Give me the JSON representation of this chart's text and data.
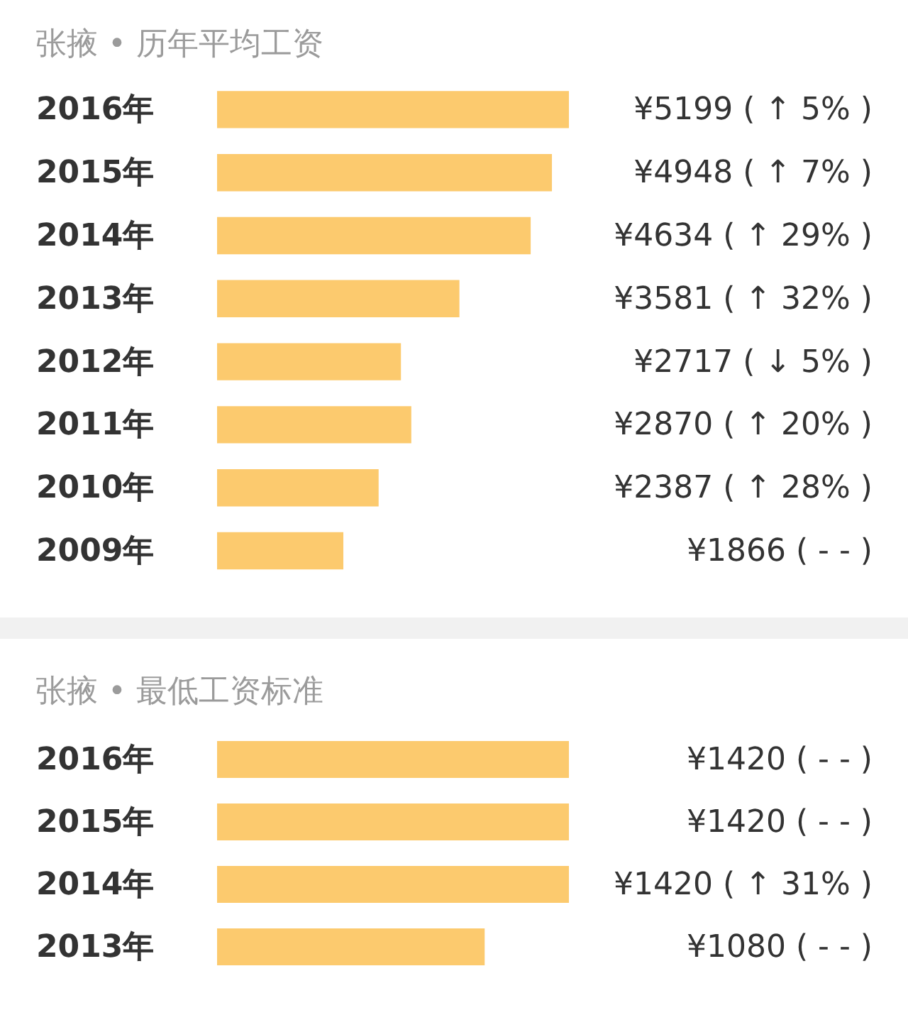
{
  "chart_data": [
    {
      "type": "bar",
      "orientation": "horizontal",
      "title": "张掖 • 历年平均工资",
      "categories": [
        "2016年",
        "2015年",
        "2014年",
        "2013年",
        "2012年",
        "2011年",
        "2010年",
        "2009年"
      ],
      "values": [
        5199,
        4948,
        4634,
        3581,
        2717,
        2870,
        2387,
        1866
      ],
      "color": "#fcca6e",
      "value_labels": [
        "¥5199 ( ↑ 5% )",
        "¥4948 ( ↑ 7% )",
        "¥4634 ( ↑ 29% )",
        "¥3581 ( ↑ 32% )",
        "¥2717 ( ↓ 5% )",
        "¥2870 ( ↑ 20% )",
        "¥2387 ( ↑ 28% )",
        "¥1866 ( - - )"
      ]
    },
    {
      "type": "bar",
      "orientation": "horizontal",
      "title": "张掖 • 最低工资标准",
      "categories": [
        "2016年",
        "2015年",
        "2014年",
        "2013年"
      ],
      "values": [
        1420,
        1420,
        1420,
        1080
      ],
      "color": "#fcca6e",
      "value_labels": [
        "¥1420 ( - - )",
        "¥1420 ( - - )",
        "¥1420 ( ↑ 31% )",
        "¥1080 ( - - )"
      ]
    }
  ]
}
